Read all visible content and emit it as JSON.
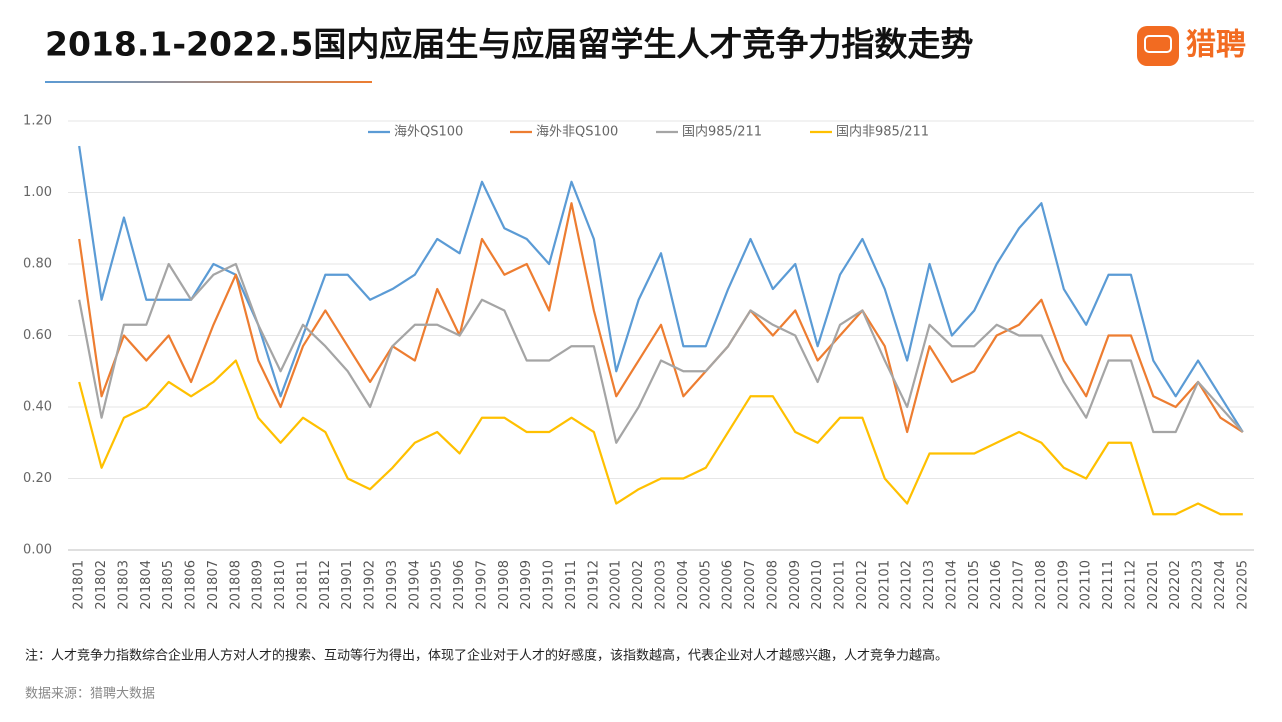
{
  "chart_data": {
    "type": "line",
    "title": "2018.1-2022.5国内应届生与应届留学生人才竞争力指数走势",
    "brand": "猎聘",
    "note": "注：人才竞争力指数综合企业用人方对人才的搜索、互动等行为得出，体现了企业对于人才的好感度，该指数越高，代表企业对人才越感兴趣，人才竞争力越高。",
    "source": "数据来源：猎聘大数据",
    "categories": [
      "201801",
      "201802",
      "201803",
      "201804",
      "201805",
      "201806",
      "201807",
      "201808",
      "201809",
      "201810",
      "201811",
      "201812",
      "201901",
      "201902",
      "201903",
      "201904",
      "201905",
      "201906",
      "201907",
      "201908",
      "201909",
      "201910",
      "201911",
      "201912",
      "202001",
      "202002",
      "202003",
      "202004",
      "202005",
      "202006",
      "202007",
      "202008",
      "202009",
      "202010",
      "202011",
      "202012",
      "202101",
      "202102",
      "202103",
      "202104",
      "202105",
      "202106",
      "202107",
      "202108",
      "202109",
      "202110",
      "202111",
      "202112",
      "202201",
      "202202",
      "202203",
      "202204",
      "202205"
    ],
    "series": [
      {
        "name": "海外QS100",
        "color": "#5b9bd5",
        "values": [
          1.13,
          0.7,
          0.93,
          0.7,
          0.7,
          0.7,
          0.8,
          0.77,
          0.63,
          0.43,
          0.6,
          0.77,
          0.77,
          0.7,
          0.73,
          0.77,
          0.87,
          0.83,
          1.03,
          0.9,
          0.87,
          0.8,
          1.03,
          0.87,
          0.5,
          0.7,
          0.83,
          0.57,
          0.57,
          0.73,
          0.87,
          0.73,
          0.8,
          0.57,
          0.77,
          0.87,
          0.73,
          0.53,
          0.8,
          0.6,
          0.67,
          0.8,
          0.9,
          0.97,
          0.73,
          0.63,
          0.77,
          0.77,
          0.53,
          0.43,
          0.53,
          0.43,
          0.33
        ]
      },
      {
        "name": "海外非QS100",
        "color": "#ed7d31",
        "values": [
          0.87,
          0.43,
          0.6,
          0.53,
          0.6,
          0.47,
          0.63,
          0.77,
          0.53,
          0.4,
          0.57,
          0.67,
          0.57,
          0.47,
          0.57,
          0.53,
          0.73,
          0.6,
          0.87,
          0.77,
          0.8,
          0.67,
          0.97,
          0.67,
          0.43,
          0.53,
          0.63,
          0.43,
          0.5,
          0.57,
          0.67,
          0.6,
          0.67,
          0.53,
          0.6,
          0.67,
          0.57,
          0.33,
          0.57,
          0.47,
          0.5,
          0.6,
          0.63,
          0.7,
          0.53,
          0.43,
          0.6,
          0.6,
          0.43,
          0.4,
          0.47,
          0.37,
          0.33
        ]
      },
      {
        "name": "国内985/211",
        "color": "#a5a5a5",
        "values": [
          0.7,
          0.37,
          0.63,
          0.63,
          0.8,
          0.7,
          0.77,
          0.8,
          0.63,
          0.5,
          0.63,
          0.57,
          0.5,
          0.4,
          0.57,
          0.63,
          0.63,
          0.6,
          0.7,
          0.67,
          0.53,
          0.53,
          0.57,
          0.57,
          0.3,
          0.4,
          0.53,
          0.5,
          0.5,
          0.57,
          0.67,
          0.63,
          0.6,
          0.47,
          0.63,
          0.67,
          0.53,
          0.4,
          0.63,
          0.57,
          0.57,
          0.63,
          0.6,
          0.6,
          0.47,
          0.37,
          0.53,
          0.53,
          0.33,
          0.33,
          0.47,
          0.4,
          0.33
        ]
      },
      {
        "name": "国内非985/211",
        "color": "#ffc000",
        "values": [
          0.47,
          0.23,
          0.37,
          0.4,
          0.47,
          0.43,
          0.47,
          0.53,
          0.37,
          0.3,
          0.37,
          0.33,
          0.2,
          0.17,
          0.23,
          0.3,
          0.33,
          0.27,
          0.37,
          0.37,
          0.33,
          0.33,
          0.37,
          0.33,
          0.13,
          0.17,
          0.2,
          0.2,
          0.23,
          0.33,
          0.43,
          0.43,
          0.33,
          0.3,
          0.37,
          0.37,
          0.2,
          0.13,
          0.27,
          0.27,
          0.27,
          0.3,
          0.33,
          0.3,
          0.23,
          0.2,
          0.3,
          0.3,
          0.1,
          0.1,
          0.13,
          0.1,
          0.1
        ]
      }
    ],
    "ylim": [
      0,
      1.2
    ],
    "yticks": [
      {
        "value": 0,
        "label": "0.00"
      },
      {
        "value": 0.2,
        "label": "0.20"
      },
      {
        "value": 0.4,
        "label": "0.40"
      },
      {
        "value": 0.6,
        "label": "0.60"
      },
      {
        "value": 0.8,
        "label": "0.80"
      },
      {
        "value": 1.0,
        "label": "1.00"
      },
      {
        "value": 1.2,
        "label": "1.20"
      }
    ],
    "grid": true,
    "legend": "top"
  }
}
